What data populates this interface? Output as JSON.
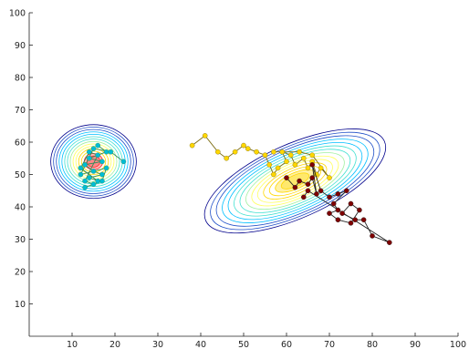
{
  "chart_data": {
    "type": "contour",
    "title": "",
    "xlabel": "",
    "ylabel": "",
    "xlim": [
      0,
      100
    ],
    "ylim": [
      0,
      100
    ],
    "grid": false,
    "x_ticks": [
      10,
      20,
      30,
      40,
      50,
      60,
      70,
      80,
      90,
      100
    ],
    "y_ticks": [
      10,
      20,
      30,
      40,
      50,
      60,
      70,
      80,
      90,
      100
    ],
    "x_tick_labels": [
      "10",
      "20",
      "30",
      "40",
      "50",
      "60",
      "70",
      "80",
      "90",
      "100"
    ],
    "y_tick_labels": [
      "10",
      "20",
      "30",
      "40",
      "50",
      "60",
      "70",
      "80",
      "90",
      "100"
    ],
    "density_components": [
      {
        "name": "",
        "center": [
          15,
          54
        ],
        "spread": [
          3.5,
          4
        ],
        "angle_deg": 0,
        "color": "#ff3030"
      },
      {
        "name": "",
        "center": [
          62,
          48
        ],
        "spread": [
          8,
          4
        ],
        "angle_deg": -24,
        "color": "#ffd700"
      }
    ],
    "contour_levels": 14,
    "colormap": [
      "#00008b",
      "#2050c8",
      "#00bfff",
      "#40e0d0",
      "#a0f0a0",
      "#ffff60",
      "#ffd700",
      "#ff9900",
      "#ff3030"
    ],
    "series": [
      {
        "name": "",
        "color": "#00bcd4",
        "line_color": "#2e8b57",
        "points": [
          [
            16,
            59
          ],
          [
            18,
            57
          ],
          [
            14,
            55
          ],
          [
            17,
            54
          ],
          [
            13,
            53
          ],
          [
            15,
            51
          ],
          [
            17,
            50
          ],
          [
            14,
            49
          ],
          [
            16,
            48
          ],
          [
            12,
            52
          ],
          [
            14,
            57
          ],
          [
            16,
            56
          ],
          [
            13,
            48
          ],
          [
            15,
            47
          ],
          [
            13,
            46
          ],
          [
            17,
            48
          ],
          [
            18,
            52
          ],
          [
            12,
            50
          ],
          [
            15,
            58
          ],
          [
            19,
            57
          ],
          [
            22,
            54
          ]
        ]
      },
      {
        "name": "",
        "color": "#ffd700",
        "line_color": "#7a6a10",
        "points": [
          [
            38,
            59
          ],
          [
            41,
            62
          ],
          [
            44,
            57
          ],
          [
            46,
            55
          ],
          [
            48,
            57
          ],
          [
            50,
            59
          ],
          [
            51,
            58
          ],
          [
            53,
            57
          ],
          [
            55,
            56
          ],
          [
            56,
            53
          ],
          [
            57,
            50
          ],
          [
            58,
            52
          ],
          [
            60,
            54
          ],
          [
            59,
            57
          ],
          [
            61,
            56
          ],
          [
            62,
            53
          ],
          [
            64,
            55
          ],
          [
            65,
            52
          ],
          [
            66,
            54
          ],
          [
            67,
            50
          ],
          [
            68,
            52
          ],
          [
            70,
            49
          ],
          [
            66,
            56
          ],
          [
            63,
            57
          ],
          [
            57,
            57
          ]
        ]
      },
      {
        "name": "",
        "color": "#7f0000",
        "line_color": "#222222",
        "points": [
          [
            60,
            49
          ],
          [
            62,
            46
          ],
          [
            63,
            48
          ],
          [
            65,
            47
          ],
          [
            66,
            49
          ],
          [
            67,
            44
          ],
          [
            66,
            53
          ],
          [
            68,
            45
          ],
          [
            70,
            43
          ],
          [
            72,
            44
          ],
          [
            74,
            45
          ],
          [
            71,
            41
          ],
          [
            72,
            39
          ],
          [
            70,
            38
          ],
          [
            72,
            36
          ],
          [
            75,
            35
          ],
          [
            77,
            39
          ],
          [
            75,
            41
          ],
          [
            73,
            38
          ],
          [
            76,
            36
          ],
          [
            78,
            36
          ],
          [
            80,
            31
          ],
          [
            84,
            29
          ],
          [
            65,
            45
          ],
          [
            64,
            43
          ]
        ]
      }
    ]
  }
}
